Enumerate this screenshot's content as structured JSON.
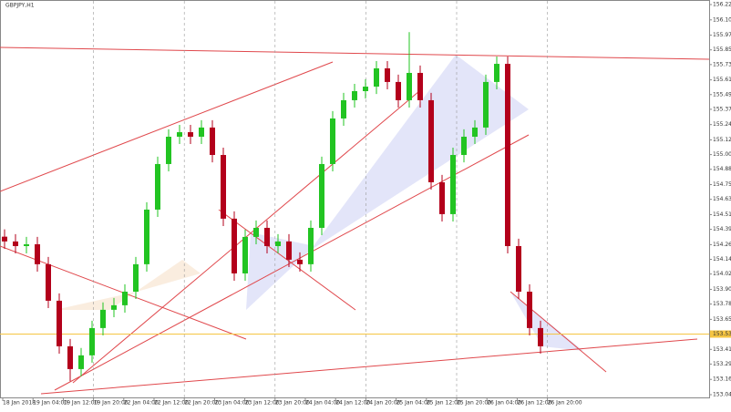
{
  "chart_data": {
    "type": "candlestick",
    "title": "GBPJPY,H1",
    "open": [
      154.33,
      154.291,
      154.253,
      154.268,
      154.105,
      153.807,
      153.435,
      153.249,
      153.361,
      153.584,
      153.733,
      153.77,
      153.881,
      154.105,
      154.551,
      154.923,
      155.146,
      155.183,
      155.146,
      155.221,
      154.997,
      154.477,
      154.03,
      154.328,
      154.402,
      154.253,
      154.291,
      154.142,
      154.105,
      154.402,
      154.923,
      155.295,
      155.444,
      155.518,
      155.555,
      155.704,
      155.593,
      155.444,
      155.667,
      155.444,
      154.774,
      154.514,
      154.997,
      155.146,
      155.221,
      155.593,
      155.741,
      154.253,
      153.881,
      153.584
    ],
    "high": [
      154.39,
      154.351,
      154.328,
      154.328,
      154.165,
      153.867,
      153.495,
      153.421,
      153.644,
      153.793,
      153.83,
      153.941,
      154.165,
      154.611,
      154.983,
      155.206,
      155.243,
      155.243,
      155.281,
      155.281,
      155.057,
      154.537,
      154.388,
      154.462,
      154.462,
      154.351,
      154.351,
      154.202,
      154.462,
      154.983,
      155.355,
      155.504,
      155.578,
      155.615,
      155.764,
      155.764,
      155.653,
      156.0,
      155.727,
      155.504,
      154.834,
      155.057,
      155.206,
      155.281,
      155.653,
      155.801,
      155.801,
      154.313,
      153.941,
      153.644
    ],
    "low": [
      154.231,
      154.193,
      154.193,
      154.045,
      153.747,
      153.375,
      153.15,
      153.189,
      153.301,
      153.524,
      153.673,
      153.71,
      153.821,
      154.045,
      154.491,
      154.863,
      155.086,
      155.086,
      155.086,
      154.937,
      154.417,
      153.97,
      153.97,
      154.268,
      154.193,
      154.193,
      154.082,
      154.045,
      154.045,
      154.342,
      154.863,
      155.235,
      155.384,
      155.458,
      155.495,
      155.533,
      155.384,
      155.384,
      155.384,
      154.714,
      154.454,
      154.454,
      154.937,
      155.086,
      155.161,
      155.533,
      154.193,
      153.821,
      153.524,
      153.375
    ],
    "close": [
      154.291,
      154.253,
      154.268,
      154.105,
      153.807,
      153.435,
      153.249,
      153.361,
      153.584,
      153.733,
      153.77,
      153.881,
      154.105,
      154.551,
      154.923,
      155.146,
      155.183,
      155.146,
      155.221,
      154.997,
      154.477,
      154.03,
      154.328,
      154.402,
      154.253,
      154.291,
      154.142,
      154.105,
      154.402,
      154.923,
      155.295,
      155.444,
      155.518,
      155.555,
      155.704,
      155.593,
      155.444,
      155.667,
      155.444,
      154.774,
      154.514,
      154.997,
      155.146,
      155.221,
      155.593,
      155.741,
      154.253,
      153.881,
      153.584,
      153.435
    ],
    "up_color": "#22c422",
    "down_color": "#b3001b",
    "x_labels": [
      "18 Jan 2018",
      "19 Jan 04:00",
      "19 Jan 12:00",
      "19 Jan 20:00",
      "22 Jan 04:00",
      "22 Jan 12:00",
      "22 Jan 20:00",
      "23 Jan 04:00",
      "23 Jan 12:00",
      "23 Jan 20:00",
      "24 Jan 04:00",
      "24 Jan 12:00",
      "24 Jan 20:00",
      "25 Jan 04:00",
      "25 Jan 12:00",
      "25 Jan 20:00",
      "26 Jan 04:00",
      "26 Jan 12:00",
      "26 Jan 20:00"
    ],
    "ylim": [
      153.04,
      156.225
    ],
    "yticks": [
      156.225,
      {
        "value": 156.1,
        "label": "156.100"
      },
      155.975,
      155.855,
      155.735,
      {
        "value": 155.61,
        "label": "155.610"
      },
      {
        "value": 155.49,
        "label": "155.490"
      },
      {
        "value": 155.37,
        "label": "155.370"
      },
      155.245,
      {
        "value": 155.12,
        "label": "155.120"
      },
      {
        "value": 155.0,
        "label": "155.000"
      },
      {
        "value": 154.88,
        "label": "154.880"
      },
      154.755,
      154.635,
      {
        "value": 154.51,
        "label": "154.510"
      },
      {
        "value": 154.39,
        "label": "154.390"
      },
      154.265,
      154.145,
      154.025,
      {
        "value": 153.9,
        "label": "153.900"
      },
      {
        "value": 153.78,
        "label": "153.780"
      },
      153.655,
      153.535,
      {
        "value": 153.41,
        "label": "153.410"
      },
      {
        "value": 153.29,
        "label": "153.290"
      },
      153.165,
      {
        "value": 153.04,
        "label": "153.040"
      }
    ],
    "current_price": 153.535,
    "price_line_color": "#f5c542"
  }
}
